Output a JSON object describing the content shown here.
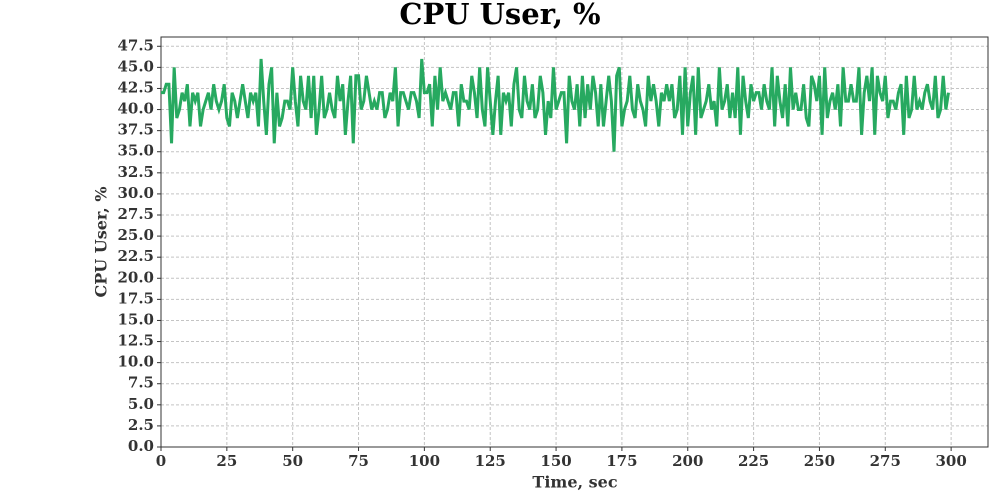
{
  "chart_data": {
    "type": "line",
    "title": "CPU User, %",
    "xlabel": "Time, sec",
    "ylabel": "CPU User, %",
    "xlim": [
      0,
      314
    ],
    "ylim": [
      0,
      48.6
    ],
    "xticks": [
      0,
      25,
      50,
      75,
      100,
      125,
      150,
      175,
      200,
      225,
      250,
      275,
      300
    ],
    "yticks": [
      {
        "value": 0,
        "label": "0.0"
      },
      2.5,
      {
        "value": 5,
        "label": "5.0"
      },
      7.5,
      {
        "value": 10,
        "label": "10.0"
      },
      12.5,
      {
        "value": 15,
        "label": "15.0"
      },
      17.5,
      {
        "value": 20,
        "label": "20.0"
      },
      22.5,
      {
        "value": 25,
        "label": "25.0"
      },
      27.5,
      {
        "value": 30,
        "label": "30.0"
      },
      32.5,
      {
        "value": 35,
        "label": "35.0"
      },
      37.5,
      {
        "value": 40,
        "label": "40.0"
      },
      42.5,
      {
        "value": 45,
        "label": "45.0"
      },
      47.5
    ],
    "grid": true,
    "x": [
      0,
      1,
      2,
      3,
      4,
      5,
      6,
      7,
      8,
      9,
      10,
      11,
      12,
      13,
      14,
      15,
      16,
      17,
      18,
      19,
      20,
      21,
      22,
      23,
      24,
      25,
      26,
      27,
      28,
      29,
      30,
      31,
      32,
      33,
      34,
      35,
      36,
      37,
      38,
      39,
      40,
      41,
      42,
      43,
      44,
      45,
      46,
      47,
      48,
      49,
      50,
      51,
      52,
      53,
      54,
      55,
      56,
      57,
      58,
      59,
      60,
      61,
      62,
      63,
      64,
      65,
      66,
      67,
      68,
      69,
      70,
      71,
      72,
      73,
      74,
      75,
      76,
      77,
      78,
      79,
      80,
      81,
      82,
      83,
      84,
      85,
      86,
      87,
      88,
      89,
      90,
      91,
      92,
      93,
      94,
      95,
      96,
      97,
      98,
      99,
      100,
      101,
      102,
      103,
      104,
      105,
      106,
      107,
      108,
      109,
      110,
      111,
      112,
      113,
      114,
      115,
      116,
      117,
      118,
      119,
      120,
      121,
      122,
      123,
      124,
      125,
      126,
      127,
      128,
      129,
      130,
      131,
      132,
      133,
      134,
      135,
      136,
      137,
      138,
      139,
      140,
      141,
      142,
      143,
      144,
      145,
      146,
      147,
      148,
      149,
      150,
      151,
      152,
      153,
      154,
      155,
      156,
      157,
      158,
      159,
      160,
      161,
      162,
      163,
      164,
      165,
      166,
      167,
      168,
      169,
      170,
      171,
      172,
      173,
      174,
      175,
      176,
      177,
      178,
      179,
      180,
      181,
      182,
      183,
      184,
      185,
      186,
      187,
      188,
      189,
      190,
      191,
      192,
      193,
      194,
      195,
      196,
      197,
      198,
      199,
      200,
      201,
      202,
      203,
      204,
      205,
      206,
      207,
      208,
      209,
      210,
      211,
      212,
      213,
      214,
      215,
      216,
      217,
      218,
      219,
      220,
      221,
      222,
      223,
      224,
      225,
      226,
      227,
      228,
      229,
      230,
      231,
      232,
      233,
      234,
      235,
      236,
      237,
      238,
      239,
      240,
      241,
      242,
      243,
      244,
      245,
      246,
      247,
      248,
      249,
      250,
      251,
      252,
      253,
      254,
      255,
      256,
      257,
      258,
      259,
      260,
      261,
      262,
      263,
      264,
      265,
      266,
      267,
      268,
      269,
      270,
      271,
      272,
      273,
      274,
      275,
      276,
      277,
      278,
      279,
      280,
      281,
      282,
      283,
      284,
      285,
      286,
      287,
      288,
      289,
      290,
      291,
      292,
      293,
      294,
      295,
      296,
      297,
      298,
      299
    ],
    "series": [
      {
        "name": "CPU User",
        "color": "#27a960",
        "values": [
          42,
          42,
          43,
          43,
          36,
          45,
          39,
          40,
          42,
          41,
          43,
          38,
          42,
          41,
          42,
          38,
          40,
          41,
          42,
          40,
          43,
          41,
          40,
          41,
          43,
          39,
          38,
          42,
          41,
          39,
          41,
          43,
          41,
          39,
          42,
          41,
          42,
          38,
          46,
          41,
          37,
          43,
          45,
          36,
          42,
          38,
          39,
          41,
          41,
          40,
          45,
          41,
          38,
          44,
          41,
          40,
          44,
          39,
          44,
          37,
          40,
          44,
          39,
          40,
          42,
          40,
          39,
          44,
          41,
          43,
          37,
          41,
          44,
          36,
          44,
          44,
          40,
          41,
          44,
          42,
          40,
          41,
          40,
          42,
          42,
          39,
          40,
          42,
          41,
          45,
          38,
          42,
          42,
          41,
          40,
          42,
          42,
          41,
          39,
          46,
          42,
          42,
          43,
          38,
          44,
          40,
          45,
          41,
          42,
          41,
          40,
          42,
          42,
          38,
          43,
          41,
          41,
          40,
          44,
          42,
          39,
          45,
          40,
          38,
          45,
          41,
          37,
          41,
          44,
          37,
          42,
          41,
          42,
          38,
          43,
          45,
          40,
          39,
          44,
          41,
          40,
          43,
          39,
          40,
          44,
          42,
          37,
          41,
          39,
          45,
          40,
          41,
          42,
          42,
          36,
          44,
          41,
          40,
          43,
          38,
          44,
          39,
          43,
          40,
          44,
          42,
          38,
          43,
          38,
          41,
          44,
          41,
          35,
          44,
          45,
          38,
          40,
          41,
          44,
          40,
          39,
          43,
          41,
          40,
          38,
          44,
          41,
          43,
          41,
          38,
          42,
          41,
          43,
          41,
          43,
          39,
          40,
          44,
          37,
          45,
          38,
          42,
          44,
          37,
          45,
          39,
          40,
          41,
          43,
          40,
          41,
          38,
          45,
          40,
          41,
          43,
          39,
          42,
          39,
          45,
          37,
          44,
          41,
          39,
          43,
          41,
          42,
          42,
          40,
          43,
          41,
          40,
          45,
          38,
          44,
          41,
          39,
          43,
          38,
          45,
          40,
          42,
          40,
          40,
          43,
          39,
          38,
          44,
          43,
          41,
          44,
          37,
          45,
          39,
          41,
          42,
          40,
          43,
          38,
          45,
          41,
          41,
          43,
          41,
          41,
          45,
          37,
          42,
          44,
          41,
          45,
          37,
          44,
          42,
          41,
          44,
          39,
          41,
          41,
          40,
          42,
          43,
          37,
          44,
          39,
          40,
          44,
          40,
          41,
          40,
          42,
          43,
          41,
          40,
          44,
          39,
          40,
          44,
          40,
          42
        ]
      }
    ]
  }
}
